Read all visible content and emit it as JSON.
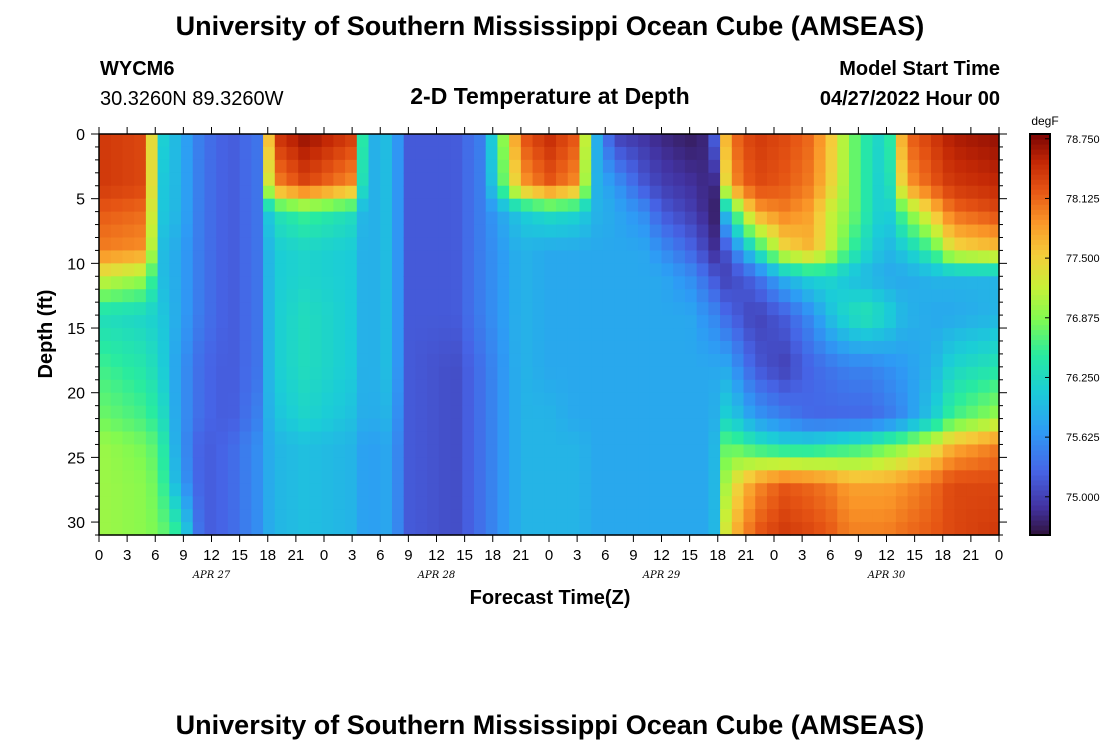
{
  "chart_data": {
    "type": "heatmap",
    "title": "University of Southern Mississippi Ocean Cube (AMSEAS)",
    "subtitle": "2-D Temperature at Depth",
    "station": "WYCM6",
    "location": "30.3260N  89.3260W",
    "model_start_label": "Model Start Time",
    "model_start_value": "04/27/2022 Hour 00",
    "xlabel": "Forecast Time(Z)",
    "ylabel": "Depth (ft)",
    "x_range_hours": [
      0,
      96
    ],
    "x_tick_step_hours": 3,
    "x_tick_labels": [
      "0",
      "3",
      "6",
      "9",
      "12",
      "15",
      "18",
      "21",
      "0",
      "3",
      "6",
      "9",
      "12",
      "15",
      "18",
      "21",
      "0",
      "3",
      "6",
      "9",
      "12",
      "15",
      "18",
      "21",
      "0",
      "3",
      "6",
      "9",
      "12",
      "15",
      "18",
      "21",
      "0"
    ],
    "date_labels": [
      {
        "text": "APR 27",
        "hour": 12
      },
      {
        "text": "APR 28",
        "hour": 36
      },
      {
        "text": "APR 29",
        "hour": 60
      },
      {
        "text": "APR 30",
        "hour": 84
      }
    ],
    "y_range_ft": [
      0,
      31
    ],
    "y_ticks": [
      0,
      5,
      10,
      15,
      20,
      25,
      30
    ],
    "colorbar": {
      "unit": "degF",
      "min": 74.6,
      "max": 78.8,
      "ticks": [
        "78.750",
        "78.125",
        "77.500",
        "76.875",
        "76.250",
        "75.625",
        "75.000"
      ],
      "tick_values": [
        78.75,
        78.125,
        77.5,
        76.875,
        76.25,
        75.625,
        75.0
      ]
    },
    "hours": [
      0,
      5,
      6.5,
      8.5,
      11,
      14,
      17,
      18.5,
      22,
      27,
      28.5,
      31,
      33,
      38,
      41,
      45,
      48,
      51,
      53,
      55,
      58,
      60,
      63,
      65,
      66,
      67,
      70,
      73,
      76,
      78,
      80,
      82,
      84,
      86,
      89,
      91,
      96
    ],
    "depths_ft": [
      0,
      4,
      6,
      9,
      11,
      14,
      18,
      22,
      24,
      27,
      31
    ],
    "temperatures_degF": [
      [
        78.4,
        78.3,
        76.2,
        75.9,
        75.4,
        75.2,
        75.4,
        78.4,
        78.7,
        78.4,
        75.8,
        76.0,
        75.2,
        75.2,
        75.5,
        78.2,
        78.5,
        78.2,
        75.9,
        75.0,
        74.9,
        74.8,
        74.7,
        74.8,
        75.5,
        78.0,
        78.4,
        78.3,
        78.1,
        77.6,
        76.9,
        76.4,
        76.1,
        78.1,
        78.4,
        78.6,
        78.7
      ],
      [
        78.4,
        78.3,
        76.1,
        75.9,
        75.4,
        75.2,
        75.4,
        77.9,
        78.3,
        77.9,
        75.8,
        76.0,
        75.2,
        75.2,
        75.5,
        77.8,
        78.2,
        77.9,
        75.9,
        75.7,
        75.2,
        75.0,
        74.9,
        74.8,
        74.8,
        77.8,
        78.3,
        78.2,
        78.0,
        77.5,
        76.9,
        76.4,
        76.0,
        77.8,
        78.2,
        78.4,
        78.5
      ],
      [
        78.2,
        78.1,
        76.1,
        75.9,
        75.4,
        75.2,
        75.4,
        76.3,
        76.6,
        76.3,
        75.8,
        76.0,
        75.2,
        75.2,
        75.5,
        76.1,
        76.3,
        76.2,
        75.9,
        75.8,
        75.6,
        75.2,
        75.0,
        74.8,
        74.7,
        76.2,
        77.8,
        78.0,
        77.8,
        77.2,
        76.9,
        76.4,
        76.0,
        76.8,
        77.6,
        78.1,
        78.3
      ],
      [
        78.0,
        77.9,
        76.0,
        75.8,
        75.4,
        75.2,
        75.4,
        76.1,
        76.2,
        76.1,
        75.8,
        76.0,
        75.2,
        75.2,
        75.5,
        75.9,
        75.8,
        75.8,
        75.8,
        75.8,
        75.8,
        75.6,
        75.3,
        75.0,
        74.8,
        75.2,
        76.3,
        77.4,
        77.7,
        77.2,
        76.6,
        76.2,
        75.9,
        76.1,
        76.6,
        77.4,
        77.6
      ],
      [
        77.3,
        77.0,
        76.0,
        75.8,
        75.4,
        75.2,
        75.4,
        76.1,
        76.2,
        76.1,
        75.8,
        76.0,
        75.2,
        75.2,
        75.5,
        75.9,
        75.8,
        75.8,
        75.8,
        75.8,
        75.8,
        75.8,
        75.6,
        75.3,
        75.1,
        75.0,
        75.3,
        75.9,
        76.2,
        76.2,
        76.0,
        75.9,
        75.8,
        75.8,
        75.9,
        75.9,
        75.9
      ],
      [
        76.3,
        76.2,
        76.1,
        75.8,
        75.4,
        75.2,
        75.4,
        76.1,
        76.3,
        76.1,
        75.8,
        76.0,
        75.2,
        75.2,
        75.5,
        75.9,
        75.8,
        75.8,
        75.8,
        75.8,
        75.8,
        75.8,
        75.8,
        75.6,
        75.5,
        75.3,
        75.0,
        75.2,
        75.6,
        76.0,
        76.3,
        76.4,
        76.2,
        75.9,
        75.8,
        75.8,
        75.9
      ],
      [
        76.6,
        76.4,
        76.2,
        75.7,
        75.3,
        75.2,
        75.4,
        76.1,
        76.3,
        76.1,
        75.8,
        76.0,
        75.2,
        75.1,
        75.4,
        75.9,
        75.8,
        75.8,
        75.8,
        75.8,
        75.8,
        75.8,
        75.8,
        75.8,
        75.8,
        75.8,
        75.2,
        75.0,
        75.3,
        75.4,
        75.5,
        75.5,
        75.6,
        75.7,
        75.9,
        76.2,
        76.4
      ],
      [
        76.8,
        76.6,
        76.4,
        75.7,
        75.3,
        75.2,
        75.5,
        76.0,
        76.2,
        76.0,
        75.8,
        75.9,
        75.2,
        75.1,
        75.4,
        75.9,
        75.9,
        75.8,
        75.8,
        75.8,
        75.8,
        75.8,
        75.8,
        75.8,
        75.9,
        76.2,
        75.7,
        75.5,
        75.3,
        75.3,
        75.3,
        75.3,
        75.4,
        75.6,
        76.1,
        76.6,
        77.0
      ],
      [
        77.0,
        76.8,
        76.6,
        75.7,
        75.2,
        75.3,
        75.6,
        75.9,
        76.0,
        75.9,
        75.7,
        75.8,
        75.2,
        75.1,
        75.4,
        75.9,
        75.9,
        75.9,
        75.8,
        75.8,
        75.8,
        75.8,
        75.8,
        75.8,
        76.0,
        76.8,
        76.4,
        76.2,
        76.2,
        76.3,
        76.4,
        76.5,
        76.7,
        76.9,
        77.3,
        77.7,
        78.0
      ],
      [
        77.0,
        76.9,
        76.7,
        75.8,
        75.2,
        75.3,
        75.6,
        75.9,
        76.0,
        75.9,
        75.7,
        75.8,
        75.2,
        75.1,
        75.4,
        75.9,
        75.9,
        75.9,
        75.8,
        75.8,
        75.8,
        75.8,
        75.8,
        75.8,
        76.0,
        77.2,
        77.9,
        78.2,
        78.1,
        78.0,
        77.8,
        77.8,
        77.8,
        77.9,
        78.1,
        78.3,
        78.3
      ],
      [
        77.0,
        76.9,
        76.8,
        76.5,
        75.2,
        75.3,
        75.6,
        75.9,
        76.0,
        75.9,
        75.7,
        75.8,
        75.2,
        75.1,
        75.4,
        75.9,
        75.9,
        75.9,
        75.8,
        75.8,
        75.8,
        75.8,
        75.8,
        75.8,
        76.0,
        77.5,
        78.2,
        78.4,
        78.3,
        78.2,
        78.0,
        78.0,
        78.0,
        78.1,
        78.2,
        78.3,
        78.4
      ]
    ]
  },
  "footer_title": "University of Southern Mississippi Ocean Cube (AMSEAS)"
}
